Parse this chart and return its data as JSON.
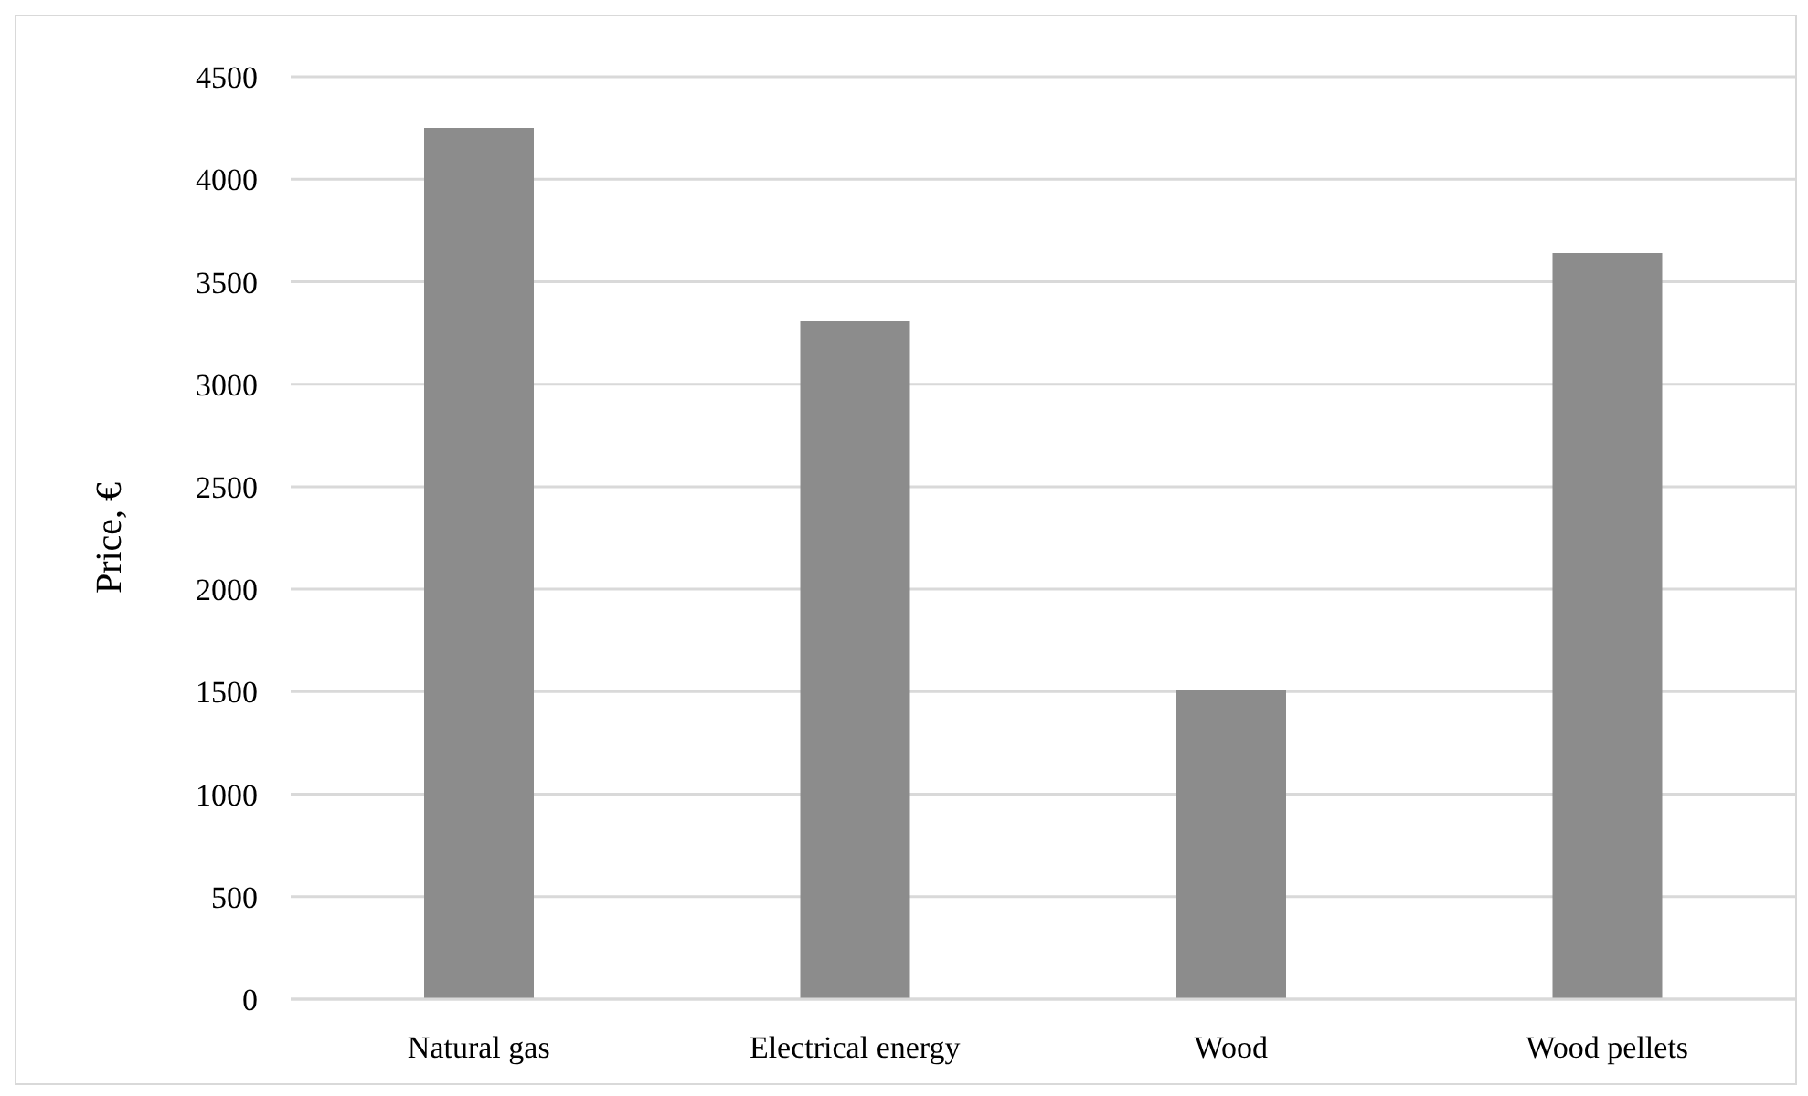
{
  "chart_data": {
    "type": "bar",
    "ylabel": "Price, €",
    "categories": [
      "Natural gas",
      "Electrical energy",
      "Wood",
      "Wood pellets"
    ],
    "values": [
      4250,
      3310,
      1510,
      3640
    ],
    "color": "#8c8c8c",
    "ylim": [
      0,
      4500
    ],
    "yticks": [
      0,
      500,
      1000,
      1500,
      2000,
      2500,
      3000,
      3500,
      4000,
      4500
    ],
    "grid": "y"
  }
}
